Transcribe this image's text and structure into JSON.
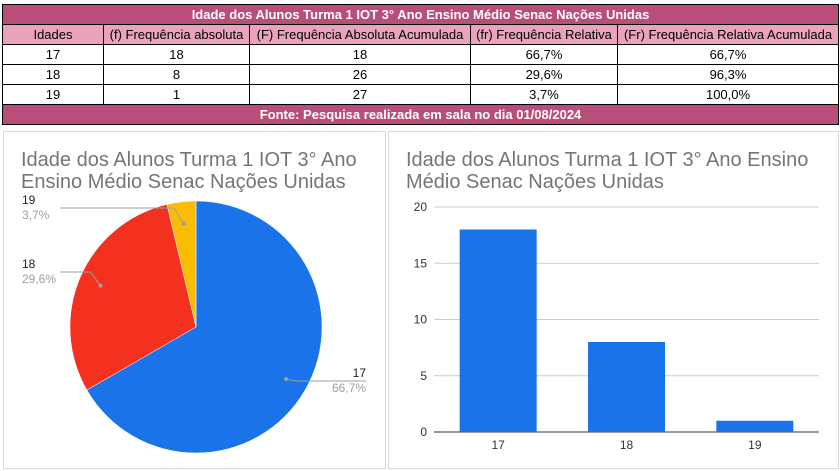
{
  "table": {
    "title": "Idade dos Alunos Turma 1 IOT 3° Ano Ensino Médio Senac Nações Unidas",
    "headers": [
      "Idades",
      "(f) Frequência absoluta",
      "(F) Frequência Absoluta Acumulada",
      "(fr) Frequência Relativa",
      "(Fr) Frequência Relativa Acumulada"
    ],
    "rows": [
      [
        "17",
        "18",
        "18",
        "66,7%",
        "66,7%"
      ],
      [
        "18",
        "8",
        "26",
        "29,6%",
        "96,3%"
      ],
      [
        "19",
        "1",
        "27",
        "3,7%",
        "100,0%"
      ]
    ],
    "footer": "Fonte: Pesquisa realizada em sala no dia 01/08/2024"
  },
  "pie": {
    "title_line1": "Idade dos Alunos Turma 1 IOT 3° Ano",
    "title_line2": "Ensino Médio Senac Nações Unidas"
  },
  "bar": {
    "title_line1": "Idade dos Alunos Turma 1 IOT 3° Ano Ensino",
    "title_line2": "Médio Senac Nações Unidas"
  },
  "chart_data": [
    {
      "type": "pie",
      "title": "Idade dos Alunos Turma 1 IOT 3° Ano Ensino Médio Senac Nações Unidas",
      "slices": [
        {
          "label": "17",
          "pct_label": "66,7%",
          "value": 18,
          "color": "#1a73e8"
        },
        {
          "label": "18",
          "pct_label": "29,6%",
          "value": 8,
          "color": "#f4311e"
        },
        {
          "label": "19",
          "pct_label": "3,7%",
          "value": 1,
          "color": "#fbbc04"
        }
      ]
    },
    {
      "type": "bar",
      "title": "Idade dos Alunos Turma 1 IOT 3° Ano Ensino Médio Senac Nações Unidas",
      "categories": [
        "17",
        "18",
        "19"
      ],
      "values": [
        18,
        8,
        1
      ],
      "color": "#1a73e8",
      "ylim": [
        0,
        20
      ],
      "yticks": [
        0,
        5,
        10,
        15,
        20
      ],
      "grid": true,
      "legend": "none"
    }
  ]
}
